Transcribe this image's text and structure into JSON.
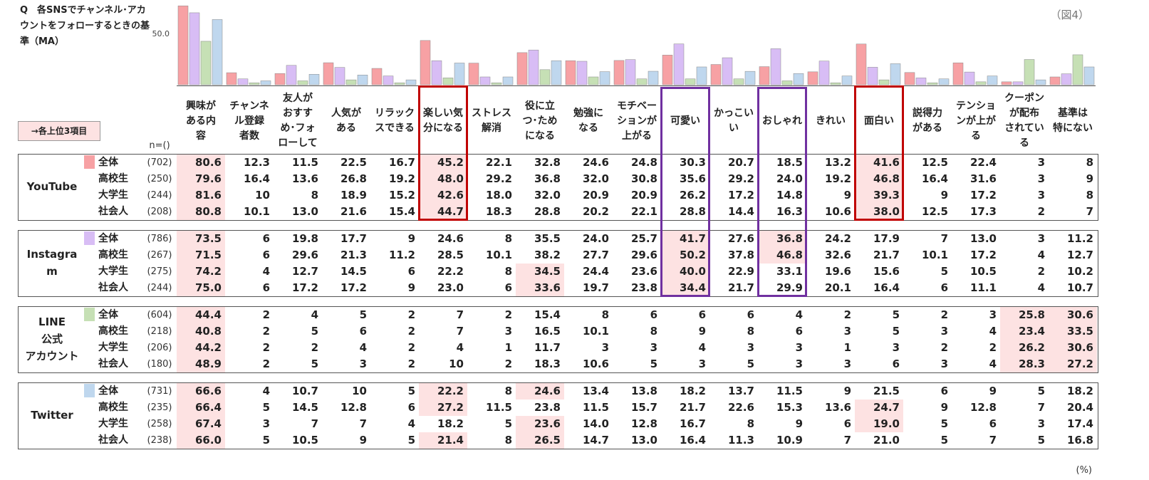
{
  "question": "Q　各SNSでチャンネル･アカウントをフォローするときの基準（MA）",
  "figure_label": "（図4）",
  "legend_top3": "→各上位3項目",
  "n_label": "n=()",
  "percent_unit": "(%)",
  "colors": {
    "youtube": "#f7a1a4",
    "instagram": "#d8bdf5",
    "line": "#c6e0b5",
    "twitter": "#bfd7ee",
    "highlight_bg": "#fde2e2",
    "red_box": "#c00000",
    "purple_box": "#7030a0"
  },
  "chart_data": {
    "type": "bar",
    "yaxis_tick": "50.0",
    "categories": [
      "興味がある内容",
      "チャンネル登録者数",
      "友人がおすすめ･フォローして",
      "人気がある",
      "リラックスできる",
      "楽しい気分になる",
      "ストレス解消",
      "役に立つ･ためになる",
      "勉強になる",
      "モチベーションが上がる",
      "可愛い",
      "かっこいい",
      "おしゃれ",
      "きれい",
      "面白い",
      "説得力がある",
      "テンションが上がる",
      "クーポンが配布されている",
      "基準は特にない"
    ],
    "column_headers": [
      "興味が\nある内\n容",
      "チャンネ\nル登録\n者数",
      "友人が\nおすす\nめ･フォ\nローして",
      "人気が\nある",
      "リラック\nスできる",
      "楽しい気\n分になる",
      "ストレス\n解消",
      "役に立\nつ･ため\nになる",
      "勉強に\nなる",
      "モチベー\nションが\n上がる",
      "可愛い",
      "かっこい\nい",
      "おしゃれ",
      "きれい",
      "面白い",
      "説得力\nがある",
      "テンショ\nンが上が\nる",
      "クーポン\nが配布\nされてい\nる",
      "基準は\n特にない"
    ],
    "groups": [
      {
        "platform": "YouTube",
        "color_key": "youtube",
        "rows": [
          {
            "segment": "全体",
            "n": "(702)",
            "values": [
              "80.6",
              "12.3",
              "11.5",
              "22.5",
              "16.7",
              "45.2",
              "22.1",
              "32.8",
              "24.6",
              "24.8",
              "30.3",
              "20.7",
              "18.5",
              "13.2",
              "41.6",
              "12.5",
              "22.4",
              "3",
              "8"
            ]
          },
          {
            "segment": "高校生",
            "n": "(250)",
            "values": [
              "79.6",
              "16.4",
              "13.6",
              "26.8",
              "19.2",
              "48.0",
              "29.2",
              "36.8",
              "32.0",
              "30.8",
              "35.6",
              "29.2",
              "24.0",
              "19.2",
              "46.8",
              "16.4",
              "31.6",
              "3",
              "9"
            ]
          },
          {
            "segment": "大学生",
            "n": "(244)",
            "values": [
              "81.6",
              "10",
              "8",
              "18.9",
              "15.2",
              "42.6",
              "18.0",
              "32.0",
              "20.9",
              "20.9",
              "26.2",
              "17.2",
              "14.8",
              "9",
              "39.3",
              "9",
              "17.2",
              "3",
              "8"
            ]
          },
          {
            "segment": "社会人",
            "n": "(208)",
            "values": [
              "80.8",
              "10.1",
              "13.0",
              "21.6",
              "15.4",
              "44.7",
              "18.3",
              "28.8",
              "20.2",
              "22.1",
              "28.8",
              "14.4",
              "16.3",
              "10.6",
              "38.0",
              "12.5",
              "17.3",
              "2",
              "7"
            ]
          }
        ]
      },
      {
        "platform": "Instagra\nm",
        "color_key": "instagram",
        "rows": [
          {
            "segment": "全体",
            "n": "(786)",
            "values": [
              "73.5",
              "6",
              "19.8",
              "17.7",
              "9",
              "24.6",
              "8",
              "35.5",
              "24.0",
              "25.7",
              "41.7",
              "27.6",
              "36.8",
              "24.2",
              "17.9",
              "7",
              "13.0",
              "3",
              "11.2"
            ]
          },
          {
            "segment": "高校生",
            "n": "(267)",
            "values": [
              "71.5",
              "6",
              "29.6",
              "21.3",
              "11.2",
              "28.5",
              "10.1",
              "38.2",
              "27.7",
              "29.6",
              "50.2",
              "37.8",
              "46.8",
              "32.6",
              "21.7",
              "10.1",
              "17.2",
              "4",
              "12.7"
            ]
          },
          {
            "segment": "大学生",
            "n": "(275)",
            "values": [
              "74.2",
              "4",
              "12.7",
              "14.5",
              "6",
              "22.2",
              "8",
              "34.5",
              "24.4",
              "23.6",
              "40.0",
              "22.9",
              "33.1",
              "19.6",
              "15.6",
              "5",
              "10.5",
              "2",
              "10.2"
            ]
          },
          {
            "segment": "社会人",
            "n": "(244)",
            "values": [
              "75.0",
              "6",
              "17.2",
              "17.2",
              "9",
              "23.0",
              "6",
              "33.6",
              "19.7",
              "23.8",
              "34.4",
              "21.7",
              "29.9",
              "20.1",
              "16.4",
              "6",
              "11.1",
              "4",
              "10.7"
            ]
          }
        ]
      },
      {
        "platform": "LINE\n公式\nアカウント",
        "color_key": "line",
        "rows": [
          {
            "segment": "全体",
            "n": "(604)",
            "values": [
              "44.4",
              "2",
              "4",
              "5",
              "2",
              "7",
              "2",
              "15.4",
              "8",
              "6",
              "6",
              "6",
              "4",
              "2",
              "5",
              "2",
              "3",
              "25.8",
              "30.6"
            ]
          },
          {
            "segment": "高校生",
            "n": "(218)",
            "values": [
              "40.8",
              "2",
              "5",
              "6",
              "2",
              "7",
              "3",
              "16.5",
              "10.1",
              "8",
              "9",
              "8",
              "6",
              "3",
              "5",
              "3",
              "4",
              "23.4",
              "33.5"
            ]
          },
          {
            "segment": "大学生",
            "n": "(206)",
            "values": [
              "44.2",
              "2",
              "2",
              "4",
              "2",
              "4",
              "1",
              "11.7",
              "3",
              "3",
              "4",
              "3",
              "3",
              "1",
              "3",
              "2",
              "2",
              "26.2",
              "30.6"
            ]
          },
          {
            "segment": "社会人",
            "n": "(180)",
            "values": [
              "48.9",
              "2",
              "5",
              "3",
              "2",
              "10",
              "2",
              "18.3",
              "10.6",
              "5",
              "3",
              "5",
              "3",
              "3",
              "6",
              "3",
              "4",
              "28.3",
              "27.2"
            ]
          }
        ]
      },
      {
        "platform": "Twitter",
        "color_key": "twitter",
        "rows": [
          {
            "segment": "全体",
            "n": "(731)",
            "values": [
              "66.6",
              "4",
              "10.7",
              "10",
              "5",
              "22.2",
              "8",
              "24.6",
              "13.4",
              "13.8",
              "18.2",
              "13.7",
              "11.5",
              "9",
              "21.5",
              "6",
              "9",
              "5",
              "18.2"
            ]
          },
          {
            "segment": "高校生",
            "n": "(235)",
            "values": [
              "66.4",
              "5",
              "14.5",
              "12.8",
              "6",
              "27.2",
              "11.5",
              "23.8",
              "11.5",
              "15.7",
              "21.7",
              "22.6",
              "15.3",
              "13.6",
              "24.7",
              "9",
              "12.8",
              "7",
              "20.4"
            ]
          },
          {
            "segment": "大学生",
            "n": "(258)",
            "values": [
              "67.4",
              "3",
              "7",
              "7",
              "4",
              "18.2",
              "5",
              "23.6",
              "14.0",
              "12.8",
              "16.7",
              "8",
              "9",
              "6",
              "19.0",
              "5",
              "6",
              "3",
              "17.4"
            ]
          },
          {
            "segment": "社会人",
            "n": "(238)",
            "values": [
              "66.0",
              "5",
              "10.5",
              "9",
              "5",
              "21.4",
              "8",
              "26.5",
              "14.7",
              "13.0",
              "16.4",
              "11.3",
              "10.9",
              "7",
              "21.0",
              "5",
              "7",
              "5",
              "16.8"
            ]
          }
        ]
      }
    ],
    "highlighted_cells": [
      [
        [
          0,
          0
        ],
        [
          0,
          5
        ],
        [
          0,
          14
        ],
        [
          1,
          0
        ],
        [
          1,
          5
        ],
        [
          1,
          14
        ],
        [
          2,
          0
        ],
        [
          2,
          5
        ],
        [
          2,
          14
        ],
        [
          3,
          0
        ],
        [
          3,
          5
        ],
        [
          3,
          14
        ]
      ],
      [
        [
          0,
          0
        ],
        [
          0,
          10
        ],
        [
          0,
          12
        ],
        [
          1,
          0
        ],
        [
          1,
          10
        ],
        [
          1,
          12
        ],
        [
          2,
          0
        ],
        [
          2,
          7
        ],
        [
          2,
          10
        ],
        [
          3,
          0
        ],
        [
          3,
          7
        ],
        [
          3,
          10
        ]
      ],
      [
        [
          0,
          0
        ],
        [
          0,
          17
        ],
        [
          0,
          18
        ],
        [
          1,
          0
        ],
        [
          1,
          17
        ],
        [
          1,
          18
        ],
        [
          2,
          0
        ],
        [
          2,
          17
        ],
        [
          2,
          18
        ],
        [
          3,
          0
        ],
        [
          3,
          17
        ],
        [
          3,
          18
        ]
      ],
      [
        [
          0,
          0
        ],
        [
          0,
          5
        ],
        [
          0,
          7
        ],
        [
          1,
          0
        ],
        [
          1,
          5
        ],
        [
          1,
          14
        ],
        [
          2,
          0
        ],
        [
          2,
          7
        ],
        [
          2,
          14
        ],
        [
          3,
          0
        ],
        [
          3,
          5
        ],
        [
          3,
          7
        ]
      ]
    ],
    "boxed_columns": [
      {
        "column": 5,
        "color_key": "red_box",
        "groups": [
          0
        ]
      },
      {
        "column": 14,
        "color_key": "red_box",
        "groups": [
          0
        ]
      },
      {
        "column": 10,
        "color_key": "purple_box",
        "groups": [
          1
        ]
      },
      {
        "column": 12,
        "color_key": "purple_box",
        "groups": [
          1
        ]
      }
    ]
  }
}
